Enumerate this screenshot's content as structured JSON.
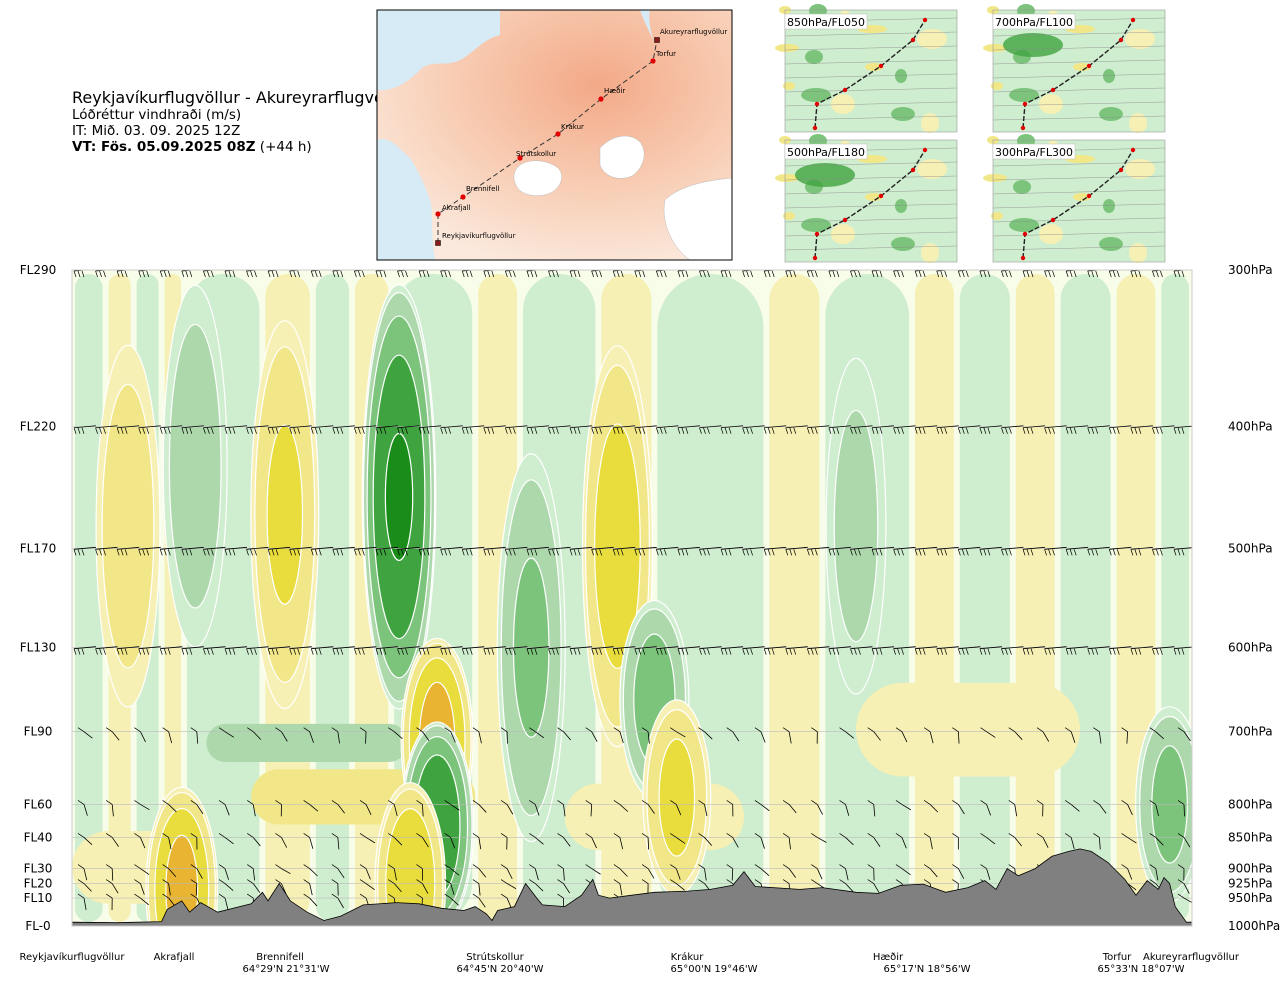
{
  "title": {
    "route": "Reykjavíkurflugvöllur - Akureyrarflugvöllur",
    "variable": "Lóðréttur vindhraði (m/s)",
    "issue_time": "IT: Mið. 03. 09. 2025 12Z",
    "valid_time": "VT: Fös. 05.09.2025 08Z",
    "lead": " (+44 h)"
  },
  "overview_map": {
    "labels": [
      "Akureyrarflugvöllur",
      "Torfur",
      "Hæðir",
      "Krákur",
      "Strútskollur",
      "Brennifell",
      "Akrafjall",
      "Reykjavíkurflugvöllur"
    ]
  },
  "panels": [
    {
      "label": "850hPa/FL050"
    },
    {
      "label": "700hPa/FL100"
    },
    {
      "label": "500hPa/FL180"
    },
    {
      "label": "300hPa/FL300"
    }
  ],
  "chart_data": {
    "type": "heatmap",
    "title": "Lóðréttur vindhraði (m/s)",
    "left_axis": [
      "FL290",
      "FL220",
      "FL170",
      "FL130",
      "FL90",
      "FL60",
      "FL40",
      "FL30",
      "FL20",
      "FL10",
      "FL-0"
    ],
    "right_axis": [
      "300hPa",
      "400hPa",
      "500hPa",
      "600hPa",
      "700hPa",
      "800hPa",
      "850hPa",
      "900hPa",
      "925hPa",
      "950hPa",
      "1000hPa"
    ],
    "pressure_levels": [
      300,
      400,
      500,
      600,
      700,
      800,
      850,
      900,
      925,
      950,
      1000
    ],
    "x_points": [
      {
        "name": "Reykjavíkurflugvöllur",
        "coord": "",
        "pos": 0.0
      },
      {
        "name": "Akrafjall",
        "coord": "",
        "pos": 0.091
      },
      {
        "name": "Brennifell",
        "coord": "64°29'N 21°31'W",
        "pos": 0.193
      },
      {
        "name": "Strútskollur",
        "coord": "64°45'N 20°40'W",
        "pos": 0.381
      },
      {
        "name": "Krákur",
        "coord": "65°00'N 19°46'W",
        "pos": 0.573
      },
      {
        "name": "Hæðir",
        "coord": "65°17'N 18°56'W",
        "pos": 0.763
      },
      {
        "name": "Torfur",
        "coord": "65°33'N 18°07'W",
        "pos": 0.955
      },
      {
        "name": "Akureyrarflugvöllur",
        "coord": "",
        "pos": 1.0
      }
    ],
    "terrain_hpa": [
      [
        0.0,
        993
      ],
      [
        0.04,
        994
      ],
      [
        0.08,
        992
      ],
      [
        0.085,
        970
      ],
      [
        0.098,
        955
      ],
      [
        0.105,
        975
      ],
      [
        0.115,
        958
      ],
      [
        0.13,
        975
      ],
      [
        0.16,
        960
      ],
      [
        0.17,
        940
      ],
      [
        0.175,
        955
      ],
      [
        0.185,
        925
      ],
      [
        0.195,
        955
      ],
      [
        0.21,
        975
      ],
      [
        0.225,
        990
      ],
      [
        0.24,
        982
      ],
      [
        0.26,
        962
      ],
      [
        0.29,
        958
      ],
      [
        0.31,
        960
      ],
      [
        0.33,
        968
      ],
      [
        0.35,
        972
      ],
      [
        0.36,
        965
      ],
      [
        0.37,
        978
      ],
      [
        0.375,
        990
      ],
      [
        0.38,
        972
      ],
      [
        0.395,
        965
      ],
      [
        0.405,
        925
      ],
      [
        0.415,
        950
      ],
      [
        0.42,
        962
      ],
      [
        0.44,
        965
      ],
      [
        0.455,
        945
      ],
      [
        0.465,
        918
      ],
      [
        0.47,
        945
      ],
      [
        0.48,
        950
      ],
      [
        0.5,
        945
      ],
      [
        0.52,
        940
      ],
      [
        0.55,
        938
      ],
      [
        0.57,
        935
      ],
      [
        0.59,
        928
      ],
      [
        0.6,
        905
      ],
      [
        0.61,
        930
      ],
      [
        0.65,
        935
      ],
      [
        0.67,
        932
      ],
      [
        0.7,
        940
      ],
      [
        0.72,
        942
      ],
      [
        0.74,
        928
      ],
      [
        0.76,
        926
      ],
      [
        0.78,
        940
      ],
      [
        0.8,
        932
      ],
      [
        0.815,
        920
      ],
      [
        0.825,
        935
      ],
      [
        0.835,
        900
      ],
      [
        0.845,
        912
      ],
      [
        0.86,
        900
      ],
      [
        0.875,
        880
      ],
      [
        0.89,
        872
      ],
      [
        0.9,
        868
      ],
      [
        0.91,
        872
      ],
      [
        0.925,
        890
      ],
      [
        0.94,
        918
      ],
      [
        0.95,
        945
      ],
      [
        0.96,
        920
      ],
      [
        0.97,
        935
      ],
      [
        0.975,
        915
      ],
      [
        0.98,
        925
      ],
      [
        0.985,
        965
      ],
      [
        0.995,
        993
      ],
      [
        1.0,
        993
      ]
    ],
    "color_levels": [
      {
        "value": -1.0,
        "color": "#1a8c1a"
      },
      {
        "value": -0.5,
        "color": "#3fa43f"
      },
      {
        "value": -0.25,
        "color": "#7cc47c"
      },
      {
        "value": -0.1,
        "color": "#acd8ac"
      },
      {
        "value": -0.05,
        "color": "#cfedcf"
      },
      {
        "value": 0.0,
        "color": "#f7fde8"
      },
      {
        "value": 0.05,
        "color": "#f7f0b4"
      },
      {
        "value": 0.1,
        "color": "#f2e788"
      },
      {
        "value": 0.25,
        "color": "#e8dd3c"
      },
      {
        "value": 0.5,
        "color": "#e9b431"
      },
      {
        "value": 1.0,
        "color": "#e0803a"
      }
    ],
    "extrema": [
      {
        "pos": 0.292,
        "hpa": 455,
        "value": -1.0
      },
      {
        "pos": 0.326,
        "hpa": 712,
        "value": 0.6
      },
      {
        "pos": 0.326,
        "hpa": 832,
        "value": -0.8
      },
      {
        "pos": 0.302,
        "hpa": 925,
        "value": 0.45
      },
      {
        "pos": 0.098,
        "hpa": 935,
        "value": 0.55
      },
      {
        "pos": 0.487,
        "hpa": 498,
        "value": 0.4
      },
      {
        "pos": 0.19,
        "hpa": 470,
        "value": 0.3
      },
      {
        "pos": 0.05,
        "hpa": 480,
        "value": 0.2
      },
      {
        "pos": 0.41,
        "hpa": 600,
        "value": -0.3
      },
      {
        "pos": 0.52,
        "hpa": 660,
        "value": -0.35
      },
      {
        "pos": 0.11,
        "hpa": 430,
        "value": -0.2
      },
      {
        "pos": 0.7,
        "hpa": 480,
        "value": -0.15
      },
      {
        "pos": 0.98,
        "hpa": 800,
        "value": -0.3
      },
      {
        "pos": 0.54,
        "hpa": 790,
        "value": 0.3
      }
    ]
  }
}
